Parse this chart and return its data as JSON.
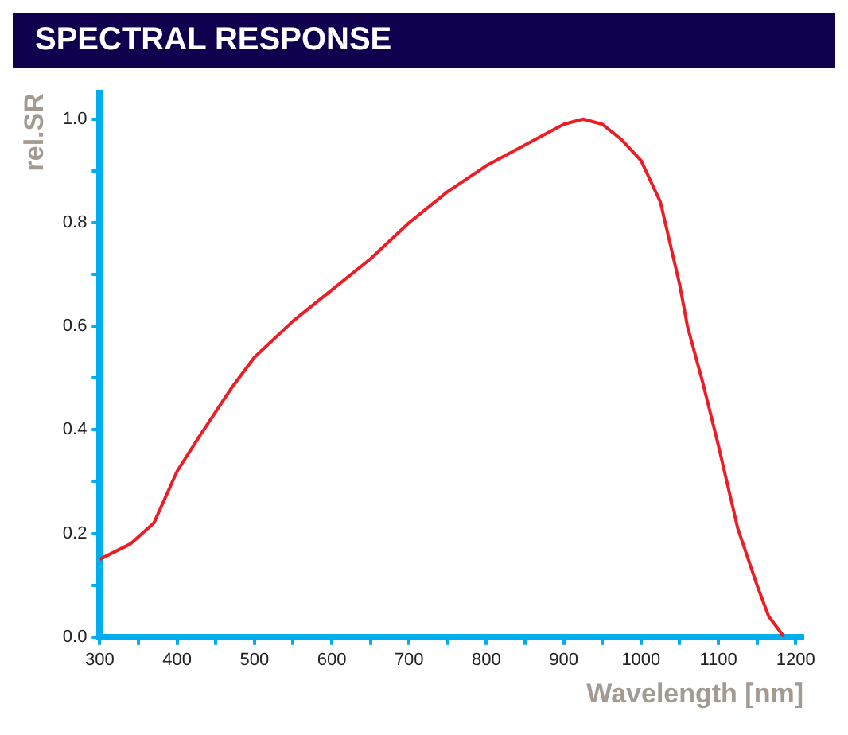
{
  "chart_data": {
    "type": "line",
    "title": "SPECTRAL RESPONSE",
    "xlabel": "Wavelength [nm]",
    "ylabel": "rel.SR",
    "x": [
      300,
      340,
      370,
      400,
      430,
      470,
      500,
      550,
      600,
      650,
      700,
      750,
      800,
      850,
      900,
      925,
      950,
      975,
      1000,
      1025,
      1050,
      1060,
      1080,
      1100,
      1125,
      1150,
      1165,
      1185
    ],
    "series": [
      {
        "color": "#ee1c25",
        "values": [
          0.15,
          0.18,
          0.22,
          0.32,
          0.39,
          0.48,
          0.54,
          0.61,
          0.67,
          0.73,
          0.8,
          0.86,
          0.91,
          0.95,
          0.99,
          1.0,
          0.99,
          0.96,
          0.92,
          0.84,
          0.68,
          0.6,
          0.49,
          0.37,
          0.21,
          0.1,
          0.04,
          0.0
        ]
      }
    ],
    "xlim": [
      300,
      1210
    ],
    "ylim": [
      0,
      1.05
    ],
    "xticks": [
      300,
      {
        "value": 350,
        "label": null
      },
      400,
      {
        "value": 450,
        "label": null
      },
      500,
      {
        "value": 550,
        "label": null
      },
      600,
      {
        "value": 650,
        "label": null
      },
      700,
      {
        "value": 750,
        "label": null
      },
      800,
      {
        "value": 850,
        "label": null
      },
      900,
      {
        "value": 950,
        "label": null
      },
      1000,
      {
        "value": 1050,
        "label": null
      },
      1100,
      {
        "value": 1150,
        "label": null
      },
      1200
    ],
    "yticks": [
      {
        "value": 0,
        "label": "0.0"
      },
      {
        "value": 0.1,
        "label": null
      },
      {
        "value": 0.2,
        "label": "0.2"
      },
      {
        "value": 0.3,
        "label": null
      },
      {
        "value": 0.4,
        "label": "0.4"
      },
      {
        "value": 0.5,
        "label": null
      },
      {
        "value": 0.6,
        "label": "0.6"
      },
      {
        "value": 0.7,
        "label": null
      },
      {
        "value": 0.8,
        "label": "0.8"
      },
      {
        "value": 0.9,
        "label": null
      },
      {
        "value": 1.0,
        "label": "1.0"
      }
    ],
    "grid": false,
    "legend": false,
    "marker": "none",
    "line_style": "solid"
  }
}
